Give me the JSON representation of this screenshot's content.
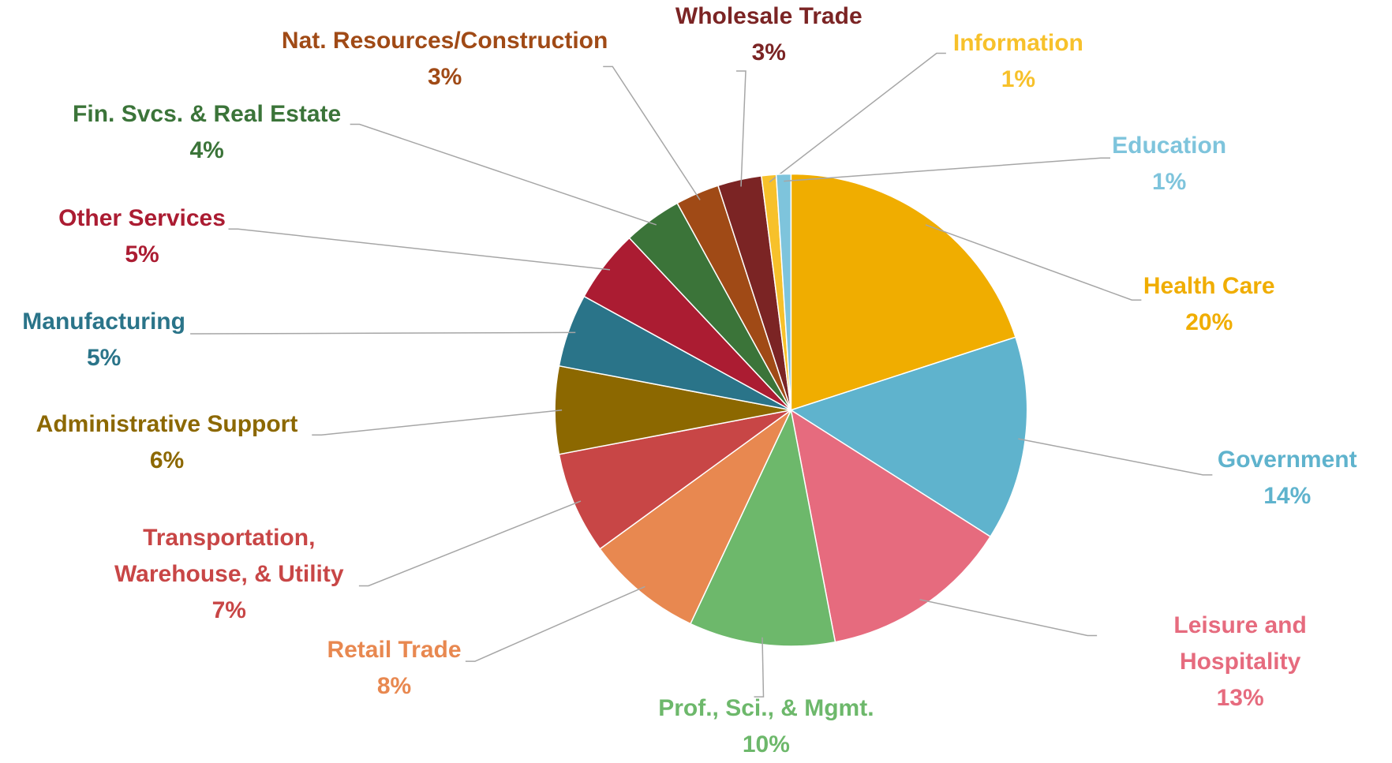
{
  "chart_data": {
    "type": "pie",
    "categories": [
      "Health Care",
      "Government",
      "Leisure and Hospitality",
      "Prof., Sci., & Mgmt.",
      "Retail Trade",
      "Transportation,\nWarehouse, & Utility",
      "Administrative Support",
      "Manufacturing",
      "Other Services",
      "Fin. Svcs. & Real Estate",
      "Nat. Resources/Construction",
      "Wholesale Trade",
      "Information",
      "Education"
    ],
    "values": [
      20,
      14,
      13,
      10,
      8,
      7,
      6,
      5,
      5,
      4,
      3,
      3,
      1,
      1
    ],
    "value_labels": [
      "20%",
      "14%",
      "13%",
      "10%",
      "8%",
      "7%",
      "6%",
      "5%",
      "5%",
      "4%",
      "3%",
      "3%",
      "1%",
      "1%"
    ],
    "colors": [
      "#f0ad00",
      "#5fb3cd",
      "#e66b7e",
      "#6db86b",
      "#e88850",
      "#c84646",
      "#8c6800",
      "#2a7489",
      "#ab1c32",
      "#3b7439",
      "#a04a16",
      "#7b2424",
      "#f7c12b",
      "#7ec4dc"
    ]
  }
}
